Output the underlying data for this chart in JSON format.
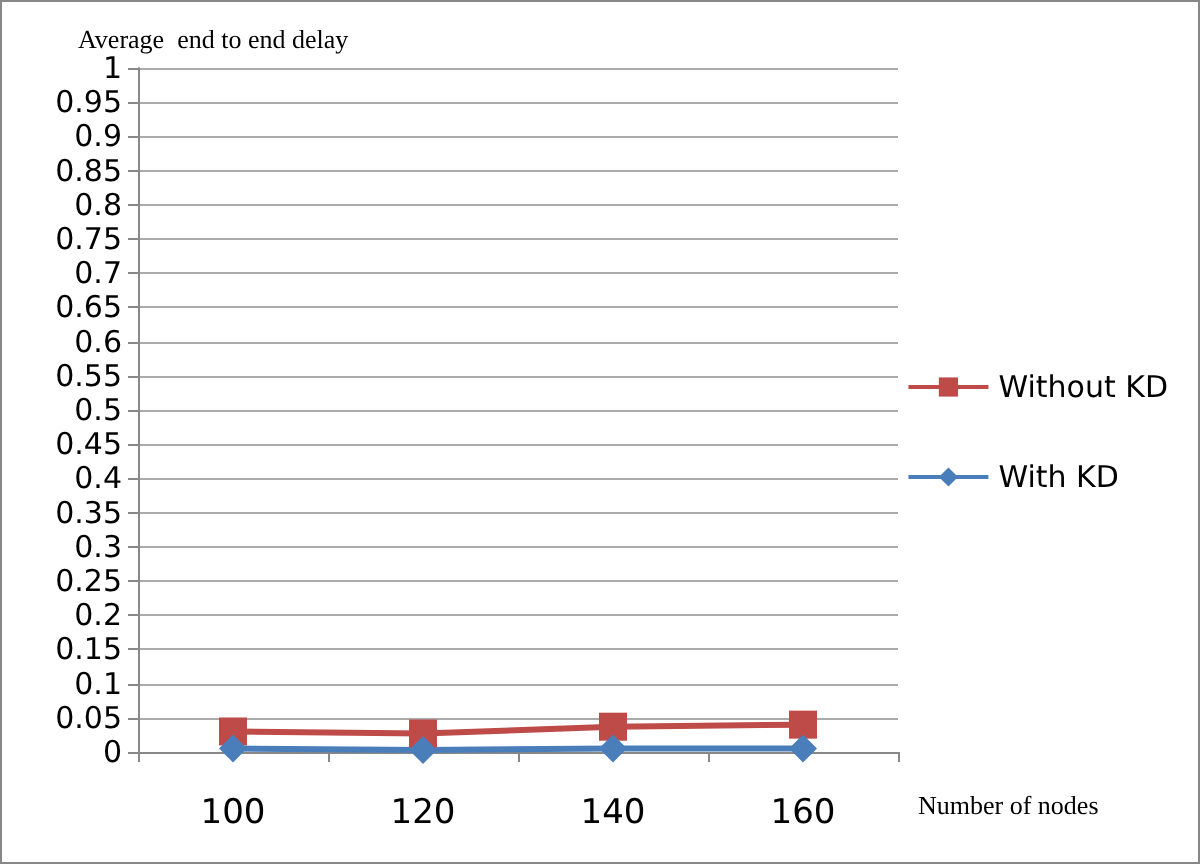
{
  "chart_data": {
    "type": "line",
    "ylabel": "Average  end to end delay",
    "xlabel": "Number of nodes",
    "categories": [
      "100",
      "120",
      "140",
      "160"
    ],
    "series": [
      {
        "name": "Without KD",
        "color": "#be4b48",
        "values": [
          0.03,
          0.027,
          0.037,
          0.04
        ],
        "marker": "square"
      },
      {
        "name": "With KD",
        "color": "#4a7ebb",
        "values": [
          0.005,
          0.003,
          0.005,
          0.005
        ],
        "marker": "diamond"
      }
    ],
    "ylim": [
      0,
      1
    ],
    "yticks": [
      0,
      0.05,
      0.1,
      0.15,
      0.2,
      0.25,
      0.3,
      0.35,
      0.4,
      0.45,
      0.5,
      0.55,
      0.6,
      0.65,
      0.7,
      0.75,
      0.8,
      0.85,
      0.9,
      0.95,
      1
    ],
    "grid": "y",
    "legend": "right"
  }
}
